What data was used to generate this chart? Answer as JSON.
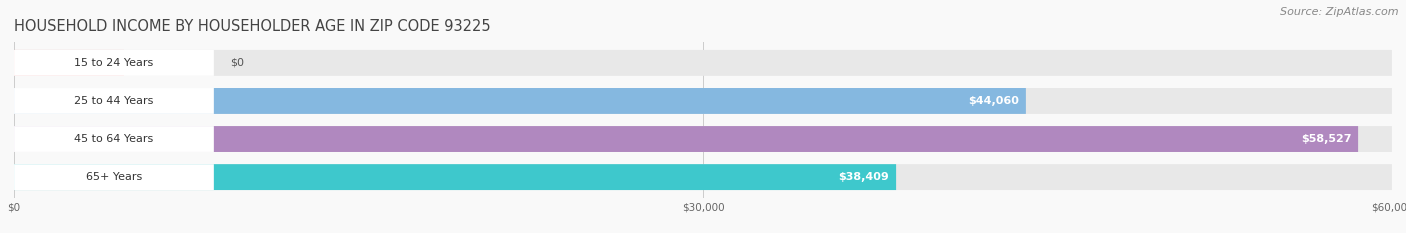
{
  "title": "HOUSEHOLD INCOME BY HOUSEHOLDER AGE IN ZIP CODE 93225",
  "source": "Source: ZipAtlas.com",
  "categories": [
    "15 to 24 Years",
    "25 to 44 Years",
    "45 to 64 Years",
    "65+ Years"
  ],
  "values": [
    0,
    44060,
    58527,
    38409
  ],
  "value_labels": [
    "$0",
    "$44,060",
    "$58,527",
    "$38,409"
  ],
  "bar_colors": [
    "#f4a0a0",
    "#85b8e0",
    "#b088bf",
    "#3ec8cc"
  ],
  "bar_bg_color": "#e8e8e8",
  "background_color": "#f9f9f9",
  "label_bg_color": "#ffffff",
  "xmax": 60000,
  "xtick_labels": [
    "$0",
    "$30,000",
    "$60,000"
  ],
  "xtick_vals": [
    0,
    30000,
    60000
  ],
  "title_fontsize": 10.5,
  "source_fontsize": 8,
  "label_fontsize": 8,
  "value_fontsize": 8
}
